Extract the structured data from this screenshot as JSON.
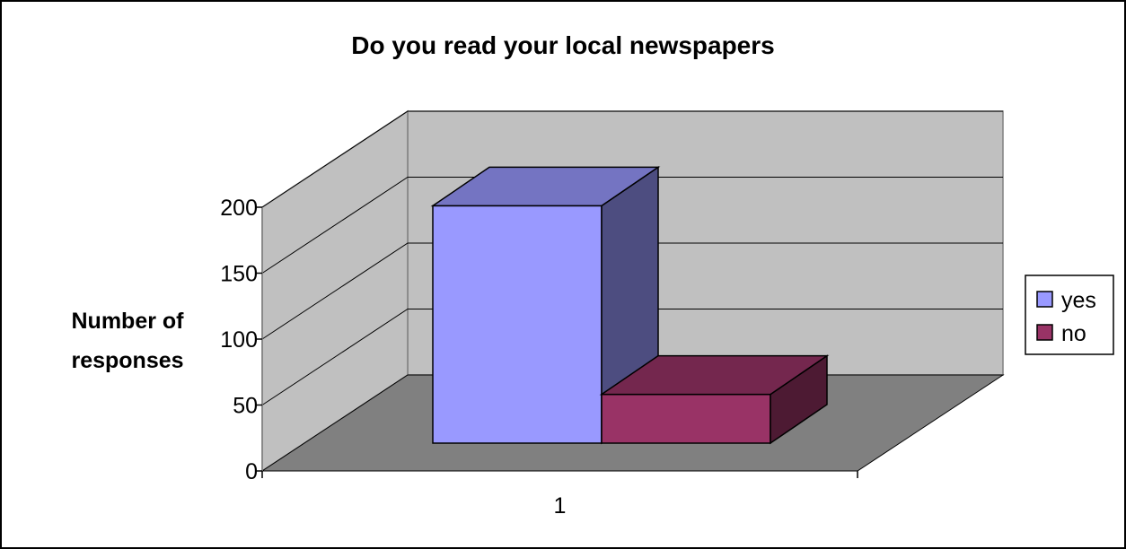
{
  "chart_data": {
    "type": "bar",
    "title": "Do you read your local newspapers",
    "xlabel": "",
    "ylabel": "Number of responses",
    "ylabel_lines": [
      "Number of",
      "responses"
    ],
    "categories": [
      "1"
    ],
    "series": [
      {
        "name": "yes",
        "values": [
          180
        ],
        "color": "#9999ff"
      },
      {
        "name": "no",
        "values": [
          37
        ],
        "color": "#993366"
      }
    ],
    "ylim": [
      0,
      200
    ],
    "yticks": [
      "0",
      "50",
      "100",
      "150",
      "200"
    ],
    "grid": true,
    "legend_position": "right",
    "style": "3d"
  },
  "colors": {
    "wall": "#c0c0c0",
    "floor": "#808080",
    "border": "#000000"
  }
}
